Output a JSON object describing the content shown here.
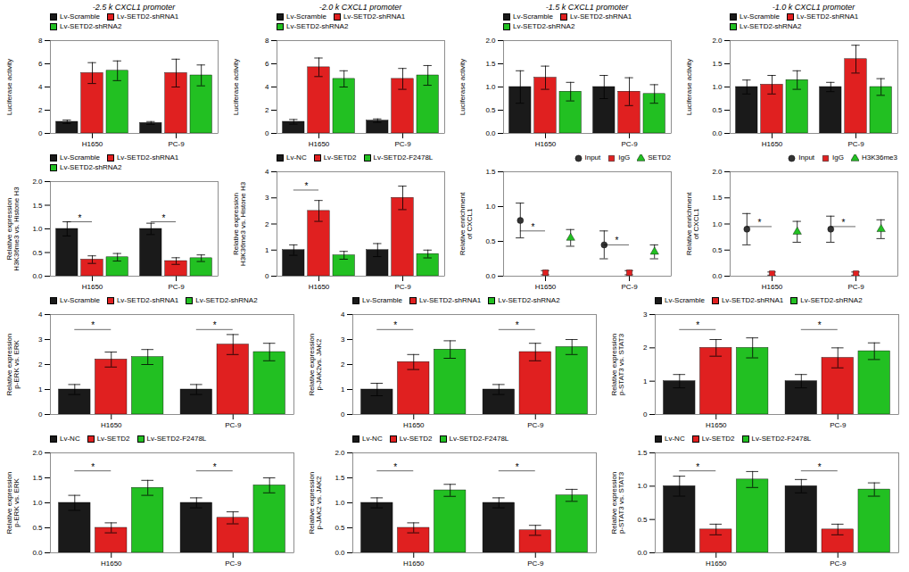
{
  "chart_data": [
    {
      "type": "bar",
      "title": "-2.5 k CXCL1 promoter",
      "ylabel": "Luciferase activity",
      "categories": [
        "H1650",
        "PC-9"
      ],
      "series": [
        {
          "name": "Lv-Scramble",
          "color": "#1a1a1a",
          "values": [
            1.0,
            0.9
          ],
          "errors": [
            0.15,
            0.12
          ]
        },
        {
          "name": "Lv-SETD2-shRNA1",
          "color": "#e02020",
          "values": [
            5.2,
            5.2
          ],
          "errors": [
            0.9,
            1.2
          ]
        },
        {
          "name": "Lv-SETD2-shRNA2",
          "color": "#22c022",
          "values": [
            5.4,
            5.0
          ],
          "errors": [
            0.85,
            0.9
          ]
        }
      ],
      "ylim": [
        0,
        8
      ],
      "yticks": [
        0,
        2,
        4,
        6,
        8
      ],
      "legend": "upper left"
    },
    {
      "type": "bar",
      "title": "-2.0 k CXCL1 promoter",
      "ylabel": "Luciferase activity",
      "categories": [
        "H1650",
        "PC-9"
      ],
      "series": [
        {
          "name": "Lv-Scramble",
          "color": "#1a1a1a",
          "values": [
            1.0,
            1.1
          ],
          "errors": [
            0.2,
            0.15
          ]
        },
        {
          "name": "Lv-SETD2-shRNA1",
          "color": "#e02020",
          "values": [
            5.7,
            4.7
          ],
          "errors": [
            0.8,
            0.9
          ]
        },
        {
          "name": "Lv-SETD2-shRNA2",
          "color": "#22c022",
          "values": [
            4.7,
            5.0
          ],
          "errors": [
            0.7,
            0.85
          ]
        }
      ],
      "ylim": [
        0,
        8
      ],
      "yticks": [
        0,
        2,
        4,
        6,
        8
      ],
      "legend": "upper left"
    },
    {
      "type": "bar",
      "title": "-1.5 k CXCL1 promoter",
      "ylabel": "Luciferase activity",
      "categories": [
        "H1650",
        "PC-9"
      ],
      "series": [
        {
          "name": "Lv-Scramble",
          "color": "#1a1a1a",
          "values": [
            1.0,
            1.0
          ],
          "errors": [
            0.35,
            0.25
          ]
        },
        {
          "name": "Lv-SETD2-shRNA1",
          "color": "#e02020",
          "values": [
            1.2,
            0.9
          ],
          "errors": [
            0.25,
            0.3
          ]
        },
        {
          "name": "Lv-SETD2-shRNA2",
          "color": "#22c022",
          "values": [
            0.9,
            0.85
          ],
          "errors": [
            0.2,
            0.2
          ]
        }
      ],
      "ylim": [
        0.0,
        2.0
      ],
      "yticks": [
        {
          "value": 0.0,
          "label": "0.0"
        },
        0.5,
        {
          "value": 1.0,
          "label": "1.0"
        },
        1.5,
        {
          "value": 2.0,
          "label": "2.0"
        }
      ],
      "legend": "upper left"
    },
    {
      "type": "bar",
      "title": "-1.0 k CXCL1 promoter",
      "ylabel": "Luciferase activity",
      "categories": [
        "H1650",
        "PC-9"
      ],
      "series": [
        {
          "name": "Lv-Scramble",
          "color": "#1a1a1a",
          "values": [
            1.0,
            1.0
          ],
          "errors": [
            0.15,
            0.1
          ]
        },
        {
          "name": "Lv-SETD2-shRNA1",
          "color": "#e02020",
          "values": [
            1.05,
            1.6
          ],
          "errors": [
            0.2,
            0.3
          ]
        },
        {
          "name": "Lv-SETD2-shRNA2",
          "color": "#22c022",
          "values": [
            1.15,
            1.0
          ],
          "errors": [
            0.2,
            0.18
          ]
        }
      ],
      "ylim": [
        0.0,
        2.0
      ],
      "yticks": [
        {
          "value": 0.0,
          "label": "0.0"
        },
        0.5,
        {
          "value": 1.0,
          "label": "1.0"
        },
        1.5,
        {
          "value": 2.0,
          "label": "2.0"
        }
      ],
      "legend": "upper left"
    },
    {
      "type": "bar",
      "ylabel": "Relative expression\nH3K36me3 vs. Histone H3",
      "categories": [
        "H1650",
        "PC-9"
      ],
      "series": [
        {
          "name": "Lv-Scramble",
          "color": "#1a1a1a",
          "values": [
            1.0,
            1.0
          ],
          "errors": [
            0.15,
            0.12
          ]
        },
        {
          "name": "Lv-SETD2-shRNA1",
          "color": "#e02020",
          "values": [
            0.35,
            0.32
          ],
          "errors": [
            0.08,
            0.07
          ]
        },
        {
          "name": "Lv-SETD2-shRNA2",
          "color": "#22c022",
          "values": [
            0.4,
            0.38
          ],
          "errors": [
            0.08,
            0.07
          ]
        }
      ],
      "ylim": [
        0.0,
        2.0
      ],
      "yticks": [
        {
          "value": 0.0,
          "label": "0.0"
        },
        0.5,
        {
          "value": 1.0,
          "label": "1.0"
        },
        1.5,
        {
          "value": 2.0,
          "label": "2.0"
        }
      ],
      "legend": "upper left",
      "annotations": [
        {
          "text": "*",
          "category": "H1650",
          "from": "Lv-Scramble",
          "to": "Lv-SETD2-shRNA1",
          "y": 1.15
        },
        {
          "text": "*",
          "category": "PC-9",
          "from": "Lv-Scramble",
          "to": "Lv-SETD2-shRNA1",
          "y": 1.15
        }
      ]
    },
    {
      "type": "bar",
      "ylabel": "Relative expression\nH3K36me3 vs. Histone H3",
      "categories": [
        "H1650",
        "PC-9"
      ],
      "series": [
        {
          "name": "Lv-NC",
          "color": "#1a1a1a",
          "values": [
            1.0,
            1.0
          ],
          "errors": [
            0.2,
            0.25
          ]
        },
        {
          "name": "Lv-SETD2",
          "color": "#e02020",
          "values": [
            2.5,
            3.0
          ],
          "errors": [
            0.4,
            0.45
          ]
        },
        {
          "name": "Lv-SETD2-F2478L",
          "color": "#22c022",
          "values": [
            0.8,
            0.85
          ],
          "errors": [
            0.15,
            0.15
          ]
        }
      ],
      "ylim": [
        0,
        4
      ],
      "yticks": [
        0,
        1,
        2,
        3,
        4
      ],
      "legend": "upper left",
      "annotations": [
        {
          "text": "*",
          "category": "H1650",
          "from": "Lv-NC",
          "to": "Lv-SETD2",
          "y": 3.3
        }
      ]
    },
    {
      "type": "scatter",
      "ylabel": "Relative enrichment\nof CXCL1",
      "categories": [
        "H1650",
        "PC-9"
      ],
      "series": [
        {
          "name": "Input",
          "color": "#333333",
          "marker": "circle",
          "values": [
            0.8,
            0.45
          ],
          "errors": [
            0.25,
            0.2
          ]
        },
        {
          "name": "IgG",
          "color": "#e02020",
          "marker": "square",
          "values": [
            0.05,
            0.05
          ],
          "errors": [
            0.03,
            0.03
          ]
        },
        {
          "name": "SETD2",
          "color": "#22c022",
          "marker": "triangle",
          "values": [
            0.55,
            0.35
          ],
          "errors": [
            0.12,
            0.1
          ]
        }
      ],
      "ylim": [
        0,
        1.5
      ],
      "yticks": [
        {
          "value": 0.0,
          "label": "0.0"
        },
        0.5,
        {
          "value": 1.0,
          "label": "1.0"
        },
        1.5
      ],
      "legend": "upper right",
      "annotations": [
        {
          "text": "*",
          "category": "H1650",
          "from": "Input",
          "to": "IgG",
          "y": 0.65
        },
        {
          "text": "*",
          "category": "PC-9",
          "from": "Input",
          "to": "IgG",
          "y": 0.45
        }
      ]
    },
    {
      "type": "scatter",
      "ylabel": "Relative enrichment\nof CXCL1",
      "categories": [
        "H1650",
        "PC-9"
      ],
      "series": [
        {
          "name": "Input",
          "color": "#333333",
          "marker": "circle",
          "values": [
            0.9,
            0.9
          ],
          "errors": [
            0.3,
            0.25
          ]
        },
        {
          "name": "IgG",
          "color": "#e02020",
          "marker": "square",
          "values": [
            0.05,
            0.05
          ],
          "errors": [
            0.03,
            0.03
          ]
        },
        {
          "name": "H3K36me3",
          "color": "#22c022",
          "marker": "triangle",
          "values": [
            0.85,
            0.9
          ],
          "errors": [
            0.2,
            0.18
          ]
        }
      ],
      "ylim": [
        0,
        2.0
      ],
      "yticks": [
        {
          "value": 0.0,
          "label": "0.0"
        },
        0.5,
        {
          "value": 1.0,
          "label": "1.0"
        },
        1.5,
        {
          "value": 2.0,
          "label": "2.0"
        }
      ],
      "legend": "upper right",
      "annotations": [
        {
          "text": "*",
          "category": "H1650",
          "from": "Input",
          "to": "IgG",
          "y": 0.95
        },
        {
          "text": "*",
          "category": "PC-9",
          "from": "Input",
          "to": "IgG",
          "y": 0.95
        }
      ]
    },
    {
      "type": "bar",
      "ylabel": "Relative expression\np-ERK vs. ERK",
      "categories": [
        "H1650",
        "PC-9"
      ],
      "series": [
        {
          "name": "Lv-Scramble",
          "color": "#1a1a1a",
          "values": [
            1.0,
            1.0
          ],
          "errors": [
            0.2,
            0.2
          ]
        },
        {
          "name": "Lv-SETD2-shRNA1",
          "color": "#e02020",
          "values": [
            2.2,
            2.8
          ],
          "errors": [
            0.3,
            0.4
          ]
        },
        {
          "name": "Lv-SETD2-shRNA2",
          "color": "#22c022",
          "values": [
            2.3,
            2.5
          ],
          "errors": [
            0.3,
            0.35
          ]
        }
      ],
      "ylim": [
        0,
        4
      ],
      "yticks": [
        0,
        1,
        2,
        3,
        4
      ],
      "legend": "upper left",
      "annotations": [
        {
          "text": "*",
          "category": "H1650",
          "from": "Lv-Scramble",
          "to": "Lv-SETD2-shRNA1",
          "y": 3.4
        },
        {
          "text": "*",
          "category": "PC-9",
          "from": "Lv-Scramble",
          "to": "Lv-SETD2-shRNA1",
          "y": 3.4
        }
      ]
    },
    {
      "type": "bar",
      "ylabel": "Relative expression\np-ERK vs. ERK",
      "categories": [
        "H1650",
        "PC-9"
      ],
      "series": [
        {
          "name": "Lv-NC",
          "color": "#1a1a1a",
          "values": [
            1.0,
            1.0
          ],
          "errors": [
            0.15,
            0.1
          ]
        },
        {
          "name": "Lv-SETD2",
          "color": "#e02020",
          "values": [
            0.5,
            0.7
          ],
          "errors": [
            0.1,
            0.12
          ]
        },
        {
          "name": "Lv-SETD2-F2478L",
          "color": "#22c022",
          "values": [
            1.3,
            1.35
          ],
          "errors": [
            0.15,
            0.15
          ]
        }
      ],
      "ylim": [
        0,
        2.0
      ],
      "yticks": [
        {
          "value": 0.0,
          "label": "0.0"
        },
        0.5,
        {
          "value": 1.0,
          "label": "1.0"
        },
        1.5,
        {
          "value": 2.0,
          "label": "2.0"
        }
      ],
      "legend": "upper left",
      "annotations": [
        {
          "text": "*",
          "category": "H1650",
          "from": "Lv-NC",
          "to": "Lv-SETD2",
          "y": 1.64
        },
        {
          "text": "*",
          "category": "PC-9",
          "from": "Lv-NC",
          "to": "Lv-SETD2",
          "y": 1.64
        }
      ]
    },
    {
      "type": "bar",
      "ylabel": "Relative expression\np-JAK2vs. JAK2",
      "categories": [
        "H1650",
        "PC-9"
      ],
      "series": [
        {
          "name": "Lv-Scramble",
          "color": "#1a1a1a",
          "values": [
            1.0,
            1.0
          ],
          "errors": [
            0.25,
            0.2
          ]
        },
        {
          "name": "Lv-SETD2-shRNA1",
          "color": "#e02020",
          "values": [
            2.1,
            2.5
          ],
          "errors": [
            0.3,
            0.35
          ]
        },
        {
          "name": "Lv-SETD2-shRNA2",
          "color": "#22c022",
          "values": [
            2.6,
            2.7
          ],
          "errors": [
            0.35,
            0.3
          ]
        }
      ],
      "ylim": [
        0,
        4
      ],
      "yticks": [
        0,
        1,
        2,
        3,
        4
      ],
      "legend": "upper left",
      "annotations": [
        {
          "text": "*",
          "category": "H1650",
          "from": "Lv-Scramble",
          "to": "Lv-SETD2-shRNA1",
          "y": 3.4
        },
        {
          "text": "*",
          "category": "PC-9",
          "from": "Lv-Scramble",
          "to": "Lv-SETD2-shRNA1",
          "y": 3.4
        }
      ]
    },
    {
      "type": "bar",
      "ylabel": "Relative expression\np-JAK2 vs. JAK2",
      "categories": [
        "H1650",
        "PC-9"
      ],
      "series": [
        {
          "name": "Lv-NC",
          "color": "#1a1a1a",
          "values": [
            1.0,
            1.0
          ],
          "errors": [
            0.1,
            0.1
          ]
        },
        {
          "name": "Lv-SETD2",
          "color": "#e02020",
          "values": [
            0.5,
            0.45
          ],
          "errors": [
            0.1,
            0.1
          ]
        },
        {
          "name": "Lv-SETD2-F2478L",
          "color": "#22c022",
          "values": [
            1.25,
            1.15
          ],
          "errors": [
            0.12,
            0.12
          ]
        }
      ],
      "ylim": [
        0,
        2.0
      ],
      "yticks": [
        {
          "value": 0.0,
          "label": "0.0"
        },
        0.5,
        {
          "value": 1.0,
          "label": "1.0"
        },
        1.5,
        {
          "value": 2.0,
          "label": "2.0"
        }
      ],
      "legend": "upper left",
      "annotations": [
        {
          "text": "*",
          "category": "H1650",
          "from": "Lv-NC",
          "to": "Lv-SETD2",
          "y": 1.64
        },
        {
          "text": "*",
          "category": "PC-9",
          "from": "Lv-NC",
          "to": "Lv-SETD2",
          "y": 1.64
        }
      ]
    },
    {
      "type": "bar",
      "ylabel": "Relative expression\np-STAT3 vs. STAT3",
      "categories": [
        "H1650",
        "PC-9"
      ],
      "series": [
        {
          "name": "Lv-Scramble",
          "color": "#1a1a1a",
          "values": [
            1.0,
            1.0
          ],
          "errors": [
            0.2,
            0.2
          ]
        },
        {
          "name": "Lv-SETD2-shRNA1",
          "color": "#e02020",
          "values": [
            2.0,
            1.7
          ],
          "errors": [
            0.25,
            0.3
          ]
        },
        {
          "name": "Lv-SETD2-shRNA2",
          "color": "#22c022",
          "values": [
            2.0,
            1.9
          ],
          "errors": [
            0.3,
            0.25
          ]
        }
      ],
      "ylim": [
        0,
        3
      ],
      "yticks": [
        0,
        1,
        2,
        3
      ],
      "legend": "upper left",
      "annotations": [
        {
          "text": "*",
          "category": "H1650",
          "from": "Lv-Scramble",
          "to": "Lv-SETD2-shRNA1",
          "y": 2.55
        },
        {
          "text": "*",
          "category": "PC-9",
          "from": "Lv-Scramble",
          "to": "Lv-SETD2-shRNA1",
          "y": 2.55
        }
      ]
    },
    {
      "type": "bar",
      "ylabel": "Relative expression\np-STAT3 vs. STAT3",
      "categories": [
        "H1650",
        "PC-9"
      ],
      "series": [
        {
          "name": "Lv-NC",
          "color": "#1a1a1a",
          "values": [
            1.0,
            1.0
          ],
          "errors": [
            0.15,
            0.1
          ]
        },
        {
          "name": "Lv-SETD2",
          "color": "#e02020",
          "values": [
            0.35,
            0.35
          ],
          "errors": [
            0.08,
            0.08
          ]
        },
        {
          "name": "Lv-SETD2-F2478L",
          "color": "#22c022",
          "values": [
            1.1,
            0.95
          ],
          "errors": [
            0.12,
            0.1
          ]
        }
      ],
      "ylim": [
        0,
        1.5
      ],
      "yticks": [
        {
          "value": 0.0,
          "label": "0.0"
        },
        0.5,
        {
          "value": 1.0,
          "label": "1.0"
        },
        1.5
      ],
      "legend": "upper left",
      "annotations": [
        {
          "text": "*",
          "category": "H1650",
          "from": "Lv-NC",
          "to": "Lv-SETD2",
          "y": 1.23
        },
        {
          "text": "*",
          "category": "PC-9",
          "from": "Lv-NC",
          "to": "Lv-SETD2",
          "y": 1.23
        }
      ]
    }
  ]
}
